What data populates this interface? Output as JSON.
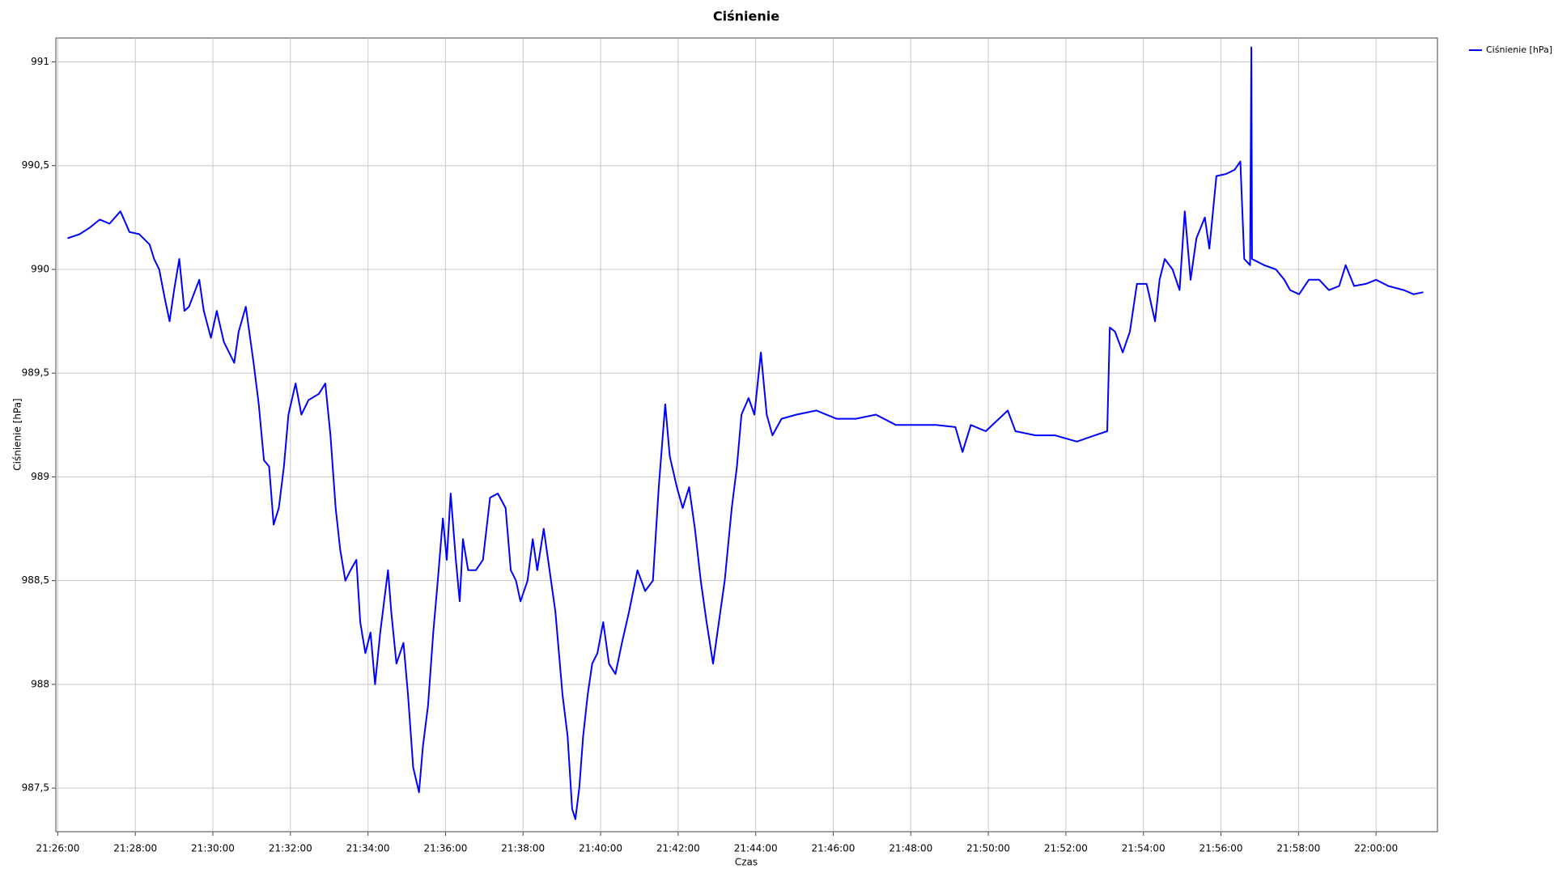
{
  "chart_data": {
    "type": "line",
    "title": "Ciśnienie",
    "x_label": "Czas",
    "y_label": "Ciśnienie [hPa]",
    "grid": true,
    "legend": "top-right",
    "xlim": [
      "21:25:57",
      "22:01:35"
    ],
    "xticks": [
      "21:26:00",
      "21:28:00",
      "21:30:00",
      "21:32:00",
      "21:34:00",
      "21:36:00",
      "21:38:00",
      "21:40:00",
      "21:42:00",
      "21:44:00",
      "21:46:00",
      "21:48:00",
      "21:50:00",
      "21:52:00",
      "21:54:00",
      "21:56:00",
      "21:58:00",
      "22:00:00"
    ],
    "ylim": [
      987.29,
      991.115
    ],
    "yticks": [
      {
        "value": 987.5,
        "label": "987,5"
      },
      988,
      {
        "value": 988.5,
        "label": "988,5"
      },
      989,
      {
        "value": 989.5,
        "label": "989,5"
      },
      990,
      {
        "value": 990.5,
        "label": "990,5"
      },
      991
    ],
    "x": [
      "21:26:15",
      "21:26:34",
      "21:26:49",
      "21:27:05",
      "21:27:20",
      "21:27:37",
      "21:27:51",
      "21:28:06",
      "21:28:22",
      "21:28:29",
      "21:28:37",
      "21:28:45",
      "21:28:53",
      "21:29:00",
      "21:29:08",
      "21:29:16",
      "21:29:23",
      "21:29:39",
      "21:29:46",
      "21:29:57",
      "21:30:06",
      "21:30:17",
      "21:30:33",
      "21:30:40",
      "21:30:51",
      "21:31:03",
      "21:31:11",
      "21:31:19",
      "21:31:27",
      "21:31:34",
      "21:31:42",
      "21:31:50",
      "21:31:57",
      "21:32:08",
      "21:32:17",
      "21:32:28",
      "21:32:44",
      "21:32:54",
      "21:33:02",
      "21:33:10",
      "21:33:17",
      "21:33:25",
      "21:33:33",
      "21:33:42",
      "21:33:48",
      "21:33:56",
      "21:34:04",
      "21:34:11",
      "21:34:19",
      "21:34:25",
      "21:34:31",
      "21:34:36",
      "21:34:44",
      "21:34:55",
      "21:35:02",
      "21:35:10",
      "21:35:19",
      "21:35:25",
      "21:35:33",
      "21:35:41",
      "21:35:48",
      "21:35:56",
      "21:36:02",
      "21:36:08",
      "21:36:16",
      "21:36:22",
      "21:36:27",
      "21:36:35",
      "21:36:47",
      "21:36:58",
      "21:37:09",
      "21:37:21",
      "21:37:33",
      "21:37:41",
      "21:37:49",
      "21:37:56",
      "21:38:07",
      "21:38:15",
      "21:38:22",
      "21:38:32",
      "21:38:41",
      "21:38:50",
      "21:39:01",
      "21:39:09",
      "21:39:16",
      "21:39:21",
      "21:39:27",
      "21:39:33",
      "21:39:40",
      "21:39:47",
      "21:39:55",
      "21:40:04",
      "21:40:13",
      "21:40:23",
      "21:40:33",
      "21:40:44",
      "21:40:57",
      "21:41:09",
      "21:41:21",
      "21:41:30",
      "21:41:40",
      "21:41:47",
      "21:41:58",
      "21:42:07",
      "21:42:17",
      "21:42:26",
      "21:42:35",
      "21:42:44",
      "21:42:54",
      "21:43:03",
      "21:43:12",
      "21:43:23",
      "21:43:31",
      "21:43:38",
      "21:43:49",
      "21:43:58",
      "21:44:08",
      "21:44:17",
      "21:44:26",
      "21:44:40",
      "21:45:03",
      "21:45:34",
      "21:46:05",
      "21:46:35",
      "21:47:06",
      "21:47:37",
      "21:48:08",
      "21:48:39",
      "21:49:09",
      "21:49:20",
      "21:49:33",
      "21:49:56",
      "21:50:30",
      "21:50:42",
      "21:51:13",
      "21:51:43",
      "21:52:17",
      "21:52:45",
      "21:53:04",
      "21:53:08",
      "21:53:16",
      "21:53:28",
      "21:53:39",
      "21:53:50",
      "21:54:05",
      "21:54:18",
      "21:54:25",
      "21:54:33",
      "21:54:45",
      "21:54:56",
      "21:55:04",
      "21:55:13",
      "21:55:22",
      "21:55:35",
      "21:55:42",
      "21:55:53",
      "21:56:08",
      "21:56:21",
      "21:56:30",
      "21:56:36",
      "21:56:45",
      "21:56:47",
      "21:56:48",
      "21:57:07",
      "21:57:25",
      "21:57:38",
      "21:57:47",
      "21:58:01",
      "21:58:16",
      "21:58:32",
      "21:58:47",
      "21:59:03",
      "21:59:13",
      "21:59:26",
      "21:59:44",
      "22:00:00",
      "22:00:19",
      "22:00:43",
      "22:00:58",
      "22:01:13"
    ],
    "series": [
      {
        "name": "Ciśnienie [hPa]",
        "color": "#0000ff",
        "values": [
          990.15,
          990.17,
          990.2,
          990.24,
          990.22,
          990.28,
          990.18,
          990.17,
          990.12,
          990.05,
          990.0,
          989.87,
          989.75,
          989.9,
          990.05,
          989.8,
          989.82,
          989.95,
          989.8,
          989.67,
          989.8,
          989.65,
          989.55,
          989.7,
          989.82,
          989.55,
          989.35,
          989.08,
          989.05,
          988.77,
          988.85,
          989.05,
          989.3,
          989.45,
          989.3,
          989.37,
          989.4,
          989.45,
          989.2,
          988.85,
          988.65,
          988.5,
          988.55,
          988.6,
          988.3,
          988.15,
          988.25,
          988.0,
          988.25,
          988.4,
          988.55,
          988.35,
          988.1,
          988.2,
          987.95,
          987.6,
          987.48,
          987.7,
          987.9,
          988.25,
          988.5,
          988.8,
          988.6,
          988.92,
          988.6,
          988.4,
          988.7,
          988.55,
          988.55,
          988.6,
          988.9,
          988.92,
          988.85,
          988.55,
          988.5,
          988.4,
          988.5,
          988.7,
          988.55,
          988.75,
          988.55,
          988.35,
          987.95,
          987.75,
          987.4,
          987.35,
          987.5,
          987.75,
          987.95,
          988.1,
          988.15,
          988.3,
          988.1,
          988.05,
          988.2,
          988.35,
          988.55,
          988.45,
          988.5,
          988.95,
          989.35,
          989.1,
          988.95,
          988.85,
          988.95,
          988.75,
          988.5,
          988.3,
          988.1,
          988.3,
          988.5,
          988.85,
          989.05,
          989.3,
          989.38,
          989.3,
          989.6,
          989.3,
          989.2,
          989.28,
          989.3,
          989.32,
          989.28,
          989.28,
          989.3,
          989.25,
          989.25,
          989.25,
          989.24,
          989.12,
          989.25,
          989.22,
          989.32,
          989.22,
          989.2,
          989.2,
          989.17,
          989.2,
          989.22,
          989.72,
          989.7,
          989.6,
          989.7,
          989.93,
          989.93,
          989.75,
          989.95,
          990.05,
          990.0,
          989.9,
          990.28,
          989.95,
          990.15,
          990.25,
          990.1,
          990.45,
          990.46,
          990.48,
          990.52,
          990.05,
          990.02,
          991.07,
          990.05,
          990.02,
          990.0,
          989.95,
          989.9,
          989.88,
          989.95,
          989.95,
          989.9,
          989.92,
          990.02,
          989.92,
          989.93,
          989.95,
          989.92,
          989.9,
          989.88,
          989.89
        ]
      }
    ]
  }
}
